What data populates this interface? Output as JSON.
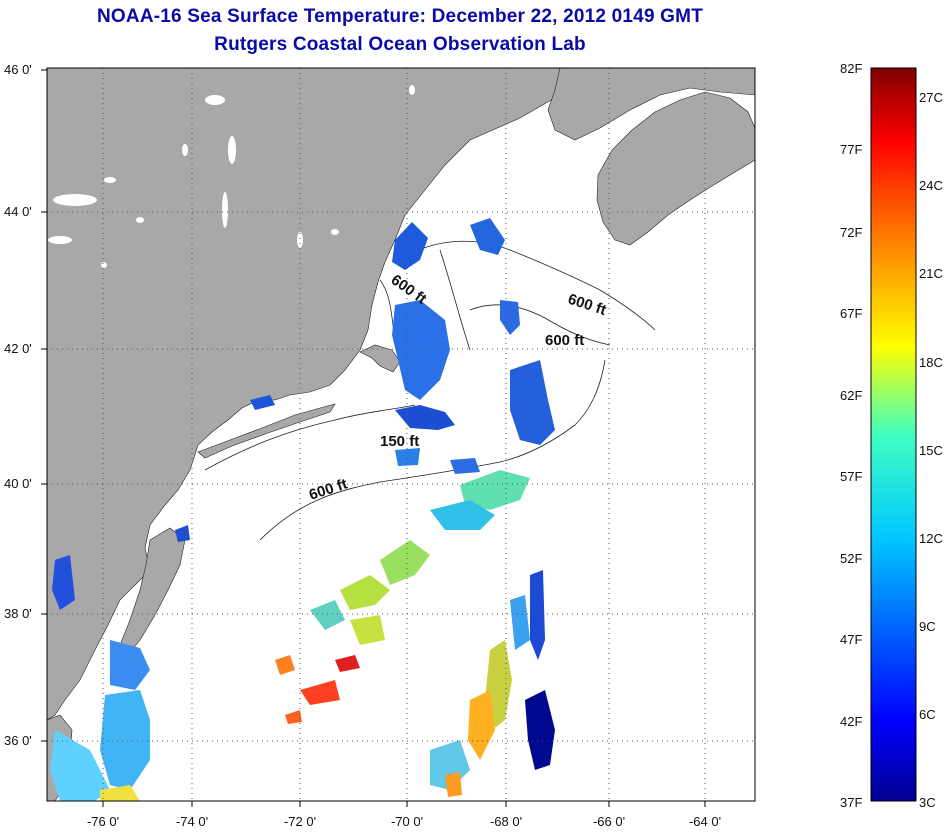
{
  "title": "NOAA-16 Sea Surface Temperature:  December 22, 2012 0149 GMT",
  "subtitle": "Rutgers Coastal Ocean Observation Lab",
  "map": {
    "lat_labels": [
      "46 0'",
      "44 0'",
      "42 0'",
      "40 0'",
      "38 0'",
      "36 0'"
    ],
    "lon_labels": [
      "-76 0'",
      "-74 0'",
      "-72 0'",
      "-70 0'",
      "-68 0'",
      "-66 0'",
      "-64 0'"
    ],
    "isobath_labels": [
      "600 ft",
      "600 ft",
      "600 ft",
      "150 ft",
      "600 ft"
    ],
    "colors": {
      "land": "#a8a8a8",
      "ocean": "#ffffff",
      "grid": "#555555"
    }
  },
  "colorbar": {
    "fahrenheit": [
      "82F",
      "77F",
      "72F",
      "67F",
      "62F",
      "57F",
      "52F",
      "47F",
      "42F",
      "37F"
    ],
    "celsius": [
      "27C",
      "24C",
      "21C",
      "18C",
      "15C",
      "12C",
      "9C",
      "6C",
      "3C"
    ],
    "colors": [
      "#7f0000",
      "#ff0000",
      "#ff8000",
      "#ffff00",
      "#80ff80",
      "#00ffff",
      "#0080ff",
      "#0000ff",
      "#00008f"
    ]
  }
}
